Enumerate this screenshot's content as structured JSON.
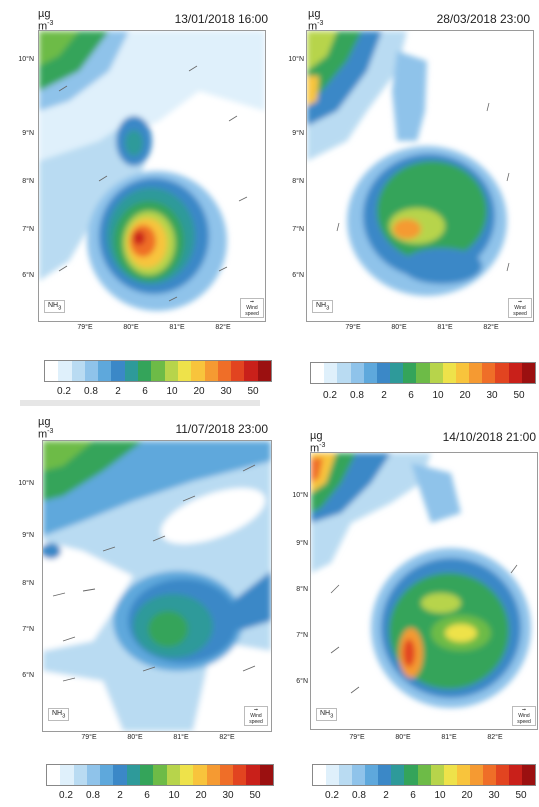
{
  "unit_label": "µg m",
  "unit_exp": "-3",
  "species_label": "NH",
  "species_sub": "3",
  "wind_key_label": "Wind speed",
  "colors": {
    "palette": [
      "#ffffff",
      "#dff0fb",
      "#b9dbf2",
      "#8fc3ea",
      "#5ea8dc",
      "#3b88c7",
      "#2e9a9a",
      "#34a45a",
      "#6dbb47",
      "#b7d44b",
      "#eee24a",
      "#f8c43c",
      "#f59a32",
      "#ef6e28",
      "#e24420",
      "#c9201a",
      "#9b1010"
    ]
  },
  "colorbar_ticks": [
    "0.2",
    "0.8",
    "2",
    "6",
    "10",
    "20",
    "30",
    "50"
  ],
  "lat_ticks": [
    "10°N",
    "9°N",
    "8°N",
    "7°N",
    "6°N"
  ],
  "lon_ticks": [
    "79°E",
    "80°E",
    "81°E",
    "82°E"
  ],
  "panels": [
    {
      "datetime": "13/01/2018 16:00"
    },
    {
      "datetime": "28/03/2018 23:00"
    },
    {
      "datetime": "11/07/2018 23:00"
    },
    {
      "datetime": "14/10/2018 21:00"
    }
  ]
}
